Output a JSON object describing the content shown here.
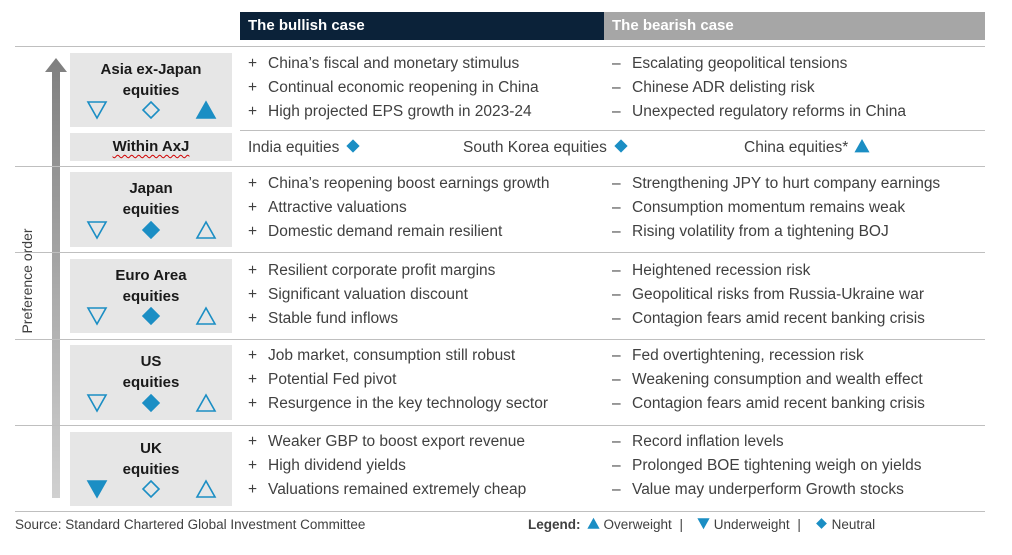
{
  "headers": {
    "bullish": "The bullish case",
    "bearish": "The bearish case"
  },
  "axis_label": "Preference order",
  "rows": [
    {
      "name": "Asia ex-Japan\nequities",
      "icons": [
        "down-outline",
        "neutral-outline",
        "up-filled"
      ],
      "bullish": [
        "China’s fiscal and monetary stimulus",
        "Continual economic reopening in China",
        "High projected EPS growth in 2023-24"
      ],
      "bearish": [
        "Escalating geopolitical tensions",
        "Chinese ADR delisting risk",
        "Unexpected regulatory reforms in China"
      ]
    },
    {
      "name": "Japan\nequities",
      "icons": [
        "down-outline",
        "neutral-filled",
        "up-outline"
      ],
      "bullish": [
        "China’s reopening boost earnings growth",
        "Attractive valuations",
        "Domestic demand remain resilient"
      ],
      "bearish": [
        "Strengthening JPY to hurt company earnings",
        "Consumption momentum remains weak",
        "Rising volatility from a tightening BOJ"
      ]
    },
    {
      "name": "Euro Area\nequities",
      "icons": [
        "down-outline",
        "neutral-filled",
        "up-outline"
      ],
      "bullish": [
        "Resilient corporate profit margins",
        "Significant valuation discount",
        "Stable fund inflows"
      ],
      "bearish": [
        "Heightened recession risk",
        "Geopolitical risks from Russia-Ukraine war",
        "Contagion fears amid recent banking crisis"
      ]
    },
    {
      "name": "US\nequities",
      "icons": [
        "down-outline",
        "neutral-filled",
        "up-outline"
      ],
      "bullish": [
        "Job market, consumption still robust",
        "Potential Fed pivot",
        "Resurgence in the key technology sector"
      ],
      "bearish": [
        "Fed overtightening, recession risk",
        "Weakening consumption and wealth effect",
        "Contagion fears amid recent banking crisis"
      ]
    },
    {
      "name": "UK\nequities",
      "icons": [
        "down-filled",
        "neutral-outline",
        "up-outline"
      ],
      "bullish": [
        "Weaker GBP to boost export revenue",
        "High dividend yields",
        "Valuations remained extremely cheap"
      ],
      "bearish": [
        "Record inflation levels",
        "Prolonged BOE tightening weigh on yields",
        "Value may underperform Growth stocks"
      ]
    }
  ],
  "within": {
    "label": "Within AxJ",
    "items": [
      {
        "text": "India equities",
        "icon": "neutral-filled"
      },
      {
        "text": "South Korea equities",
        "icon": "neutral-filled"
      },
      {
        "text": "China equities*",
        "icon": "up-filled"
      }
    ]
  },
  "bull_marker": "+",
  "bear_marker": "–",
  "source": "Source: Standard Chartered Global Investment Committee",
  "legend": {
    "title": "Legend:",
    "items": [
      {
        "icon": "up-filled",
        "text": "Overweight"
      },
      {
        "icon": "down-filled",
        "text": "Underweight"
      },
      {
        "icon": "neutral-filled",
        "text": "Neutral"
      }
    ],
    "separator": "|"
  },
  "colors": {
    "accent": "#1b8ec4",
    "header_dark": "#0b2239",
    "header_grey": "#a6a6a6",
    "label_bg": "#e6e6e6"
  }
}
